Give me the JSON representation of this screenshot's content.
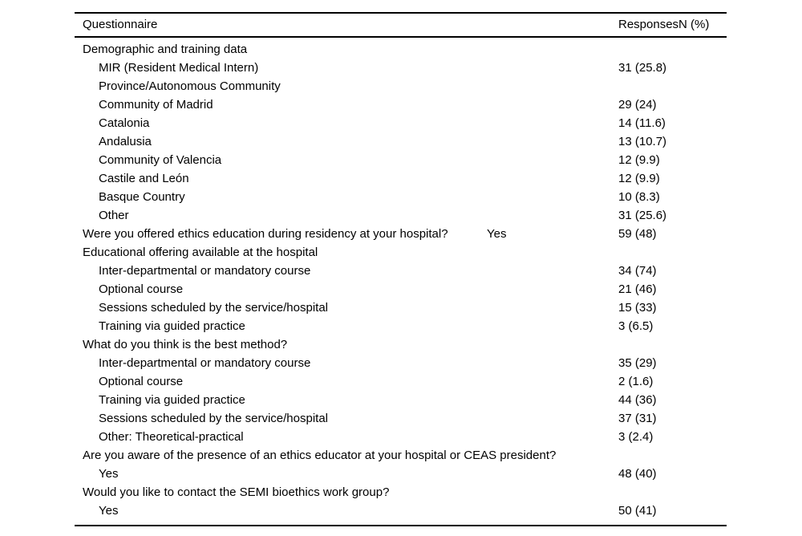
{
  "table": {
    "columns": [
      "Questionnaire",
      "ResponsesN (%)"
    ],
    "rows": [
      {
        "label": "Demographic and training data",
        "indent": 0,
        "value": ""
      },
      {
        "label": "MIR (Resident Medical Intern)",
        "indent": 1,
        "value": "31 (25.8)"
      },
      {
        "label": "Province/Autonomous Community",
        "indent": 1,
        "value": ""
      },
      {
        "label": "Community of Madrid",
        "indent": 1,
        "value": "29 (24)"
      },
      {
        "label": "Catalonia",
        "indent": 1,
        "value": "14 (11.6)"
      },
      {
        "label": "Andalusia",
        "indent": 1,
        "value": "13 (10.7)"
      },
      {
        "label": "Community of Valencia",
        "indent": 1,
        "value": "12 (9.9)"
      },
      {
        "label": "Castile and León",
        "indent": 1,
        "value": "12 (9.9)"
      },
      {
        "label": "Basque Country",
        "indent": 1,
        "value": "10 (8.3)"
      },
      {
        "label": "Other",
        "indent": 1,
        "value": "31 (25.6)"
      },
      {
        "label": "Were you offered ethics education during residency at your hospital?",
        "indent": 0,
        "answer": "Yes",
        "value": "59 (48)"
      },
      {
        "label": "Educational offering available at the hospital",
        "indent": 0,
        "value": ""
      },
      {
        "label": "Inter-departmental or mandatory course",
        "indent": 1,
        "value": "34 (74)"
      },
      {
        "label": "Optional course",
        "indent": 1,
        "value": "21 (46)"
      },
      {
        "label": "Sessions scheduled by the service/hospital",
        "indent": 1,
        "value": "15 (33)"
      },
      {
        "label": "Training via guided practice",
        "indent": 1,
        "value": "3 (6.5)"
      },
      {
        "label": "What do you think is the best method?",
        "indent": 0,
        "value": ""
      },
      {
        "label": "Inter-departmental or mandatory course",
        "indent": 1,
        "value": "35 (29)"
      },
      {
        "label": "Optional course",
        "indent": 1,
        "value": "2 (1.6)"
      },
      {
        "label": "Training via guided practice",
        "indent": 1,
        "value": "44 (36)"
      },
      {
        "label": "Sessions scheduled by the service/hospital",
        "indent": 1,
        "value": "37 (31)"
      },
      {
        "label": "Other: Theoretical-practical",
        "indent": 1,
        "value": "3 (2.4)"
      },
      {
        "label": "Are you aware of the presence of an ethics educator at your hospital or CEAS president?",
        "indent": 0,
        "value": ""
      },
      {
        "label": "Yes",
        "indent": 1,
        "value": "48 (40)"
      },
      {
        "label": "Would you like to contact the SEMI bioethics work group?",
        "indent": 0,
        "value": ""
      },
      {
        "label": "Yes",
        "indent": 1,
        "value": "50 (41)"
      }
    ]
  }
}
